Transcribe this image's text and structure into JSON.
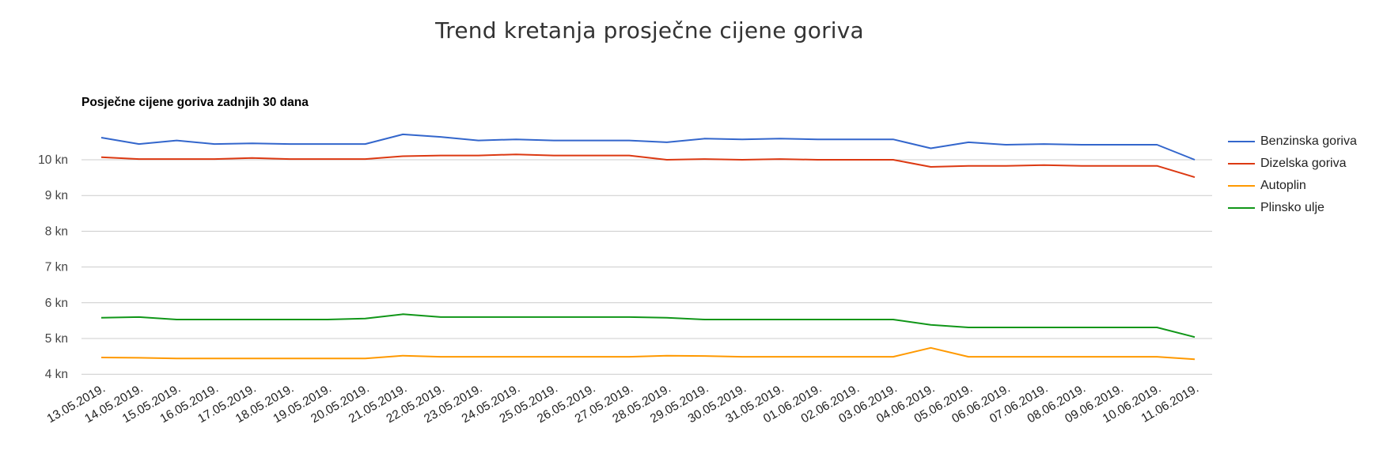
{
  "header": {
    "title": "Trend kretanja prosječne cijene goriva"
  },
  "chart_data": {
    "type": "line",
    "title": "Posječne cijene goriva zadnjih 30 dana",
    "xlabel": "",
    "ylabel": "",
    "ylim": [
      4,
      10.6
    ],
    "y_ticks": [
      "4 kn",
      "5 kn",
      "6 kn",
      "7 kn",
      "8 kn",
      "9 kn",
      "10 kn"
    ],
    "y_tick_values": [
      4,
      5,
      6,
      7,
      8,
      9,
      10
    ],
    "grid": true,
    "legend_position": "right",
    "categories": [
      "13.05.2019.",
      "14.05.2019.",
      "15.05.2019.",
      "16.05.2019.",
      "17.05.2019.",
      "18.05.2019.",
      "19.05.2019.",
      "20.05.2019.",
      "21.05.2019.",
      "22.05.2019.",
      "23.05.2019.",
      "24.05.2019.",
      "25.05.2019.",
      "26.05.2019.",
      "27.05.2019.",
      "28.05.2019.",
      "29.05.2019.",
      "30.05.2019.",
      "31.05.2019.",
      "01.06.2019.",
      "02.06.2019.",
      "03.06.2019.",
      "04.06.2019.",
      "05.06.2019.",
      "06.06.2019.",
      "07.06.2019.",
      "08.06.2019.",
      "09.06.2019.",
      "10.06.2019.",
      "11.06.2019."
    ],
    "series": [
      {
        "name": "Benzinska goriva",
        "color": "#3366cc",
        "values": [
          10.62,
          10.44,
          10.54,
          10.44,
          10.46,
          10.44,
          10.44,
          10.44,
          10.71,
          10.64,
          10.54,
          10.57,
          10.54,
          10.54,
          10.54,
          10.49,
          10.59,
          10.57,
          10.59,
          10.57,
          10.57,
          10.57,
          10.32,
          10.49,
          10.42,
          10.44,
          10.42,
          10.42,
          10.42,
          10.0
        ]
      },
      {
        "name": "Dizelska goriva",
        "color": "#dc3912",
        "values": [
          10.07,
          10.02,
          10.02,
          10.02,
          10.05,
          10.02,
          10.02,
          10.02,
          10.1,
          10.12,
          10.12,
          10.15,
          10.12,
          10.12,
          10.12,
          10.0,
          10.02,
          10.0,
          10.02,
          10.0,
          10.0,
          10.0,
          9.8,
          9.83,
          9.83,
          9.85,
          9.83,
          9.83,
          9.83,
          9.51
        ]
      },
      {
        "name": "Autoplin",
        "color": "#ff9900",
        "values": [
          4.47,
          4.46,
          4.44,
          4.44,
          4.44,
          4.44,
          4.44,
          4.44,
          4.52,
          4.49,
          4.49,
          4.49,
          4.49,
          4.49,
          4.49,
          4.52,
          4.51,
          4.49,
          4.49,
          4.49,
          4.49,
          4.49,
          4.74,
          4.49,
          4.49,
          4.49,
          4.49,
          4.49,
          4.49,
          4.42
        ]
      },
      {
        "name": "Plinsko ulje",
        "color": "#109618",
        "values": [
          5.58,
          5.6,
          5.53,
          5.53,
          5.53,
          5.53,
          5.53,
          5.56,
          5.68,
          5.6,
          5.6,
          5.6,
          5.6,
          5.6,
          5.6,
          5.58,
          5.53,
          5.53,
          5.53,
          5.53,
          5.53,
          5.53,
          5.38,
          5.31,
          5.31,
          5.31,
          5.31,
          5.31,
          5.31,
          5.04
        ]
      }
    ]
  }
}
